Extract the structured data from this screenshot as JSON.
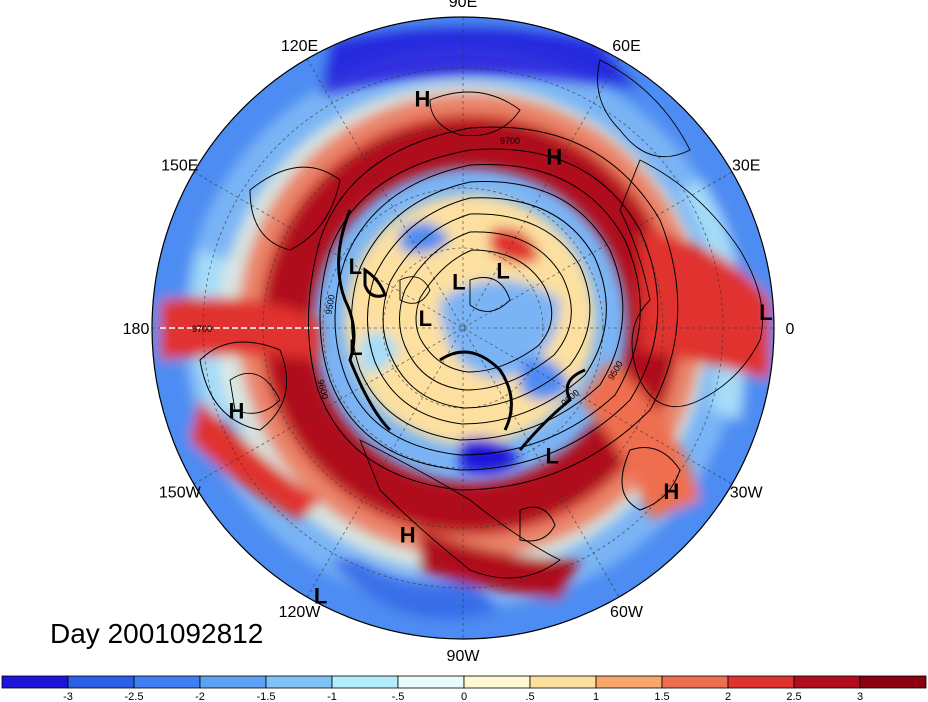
{
  "map": {
    "projection": "north-polar-stereographic",
    "longitude_labels": [
      {
        "text": "90E",
        "lon": 90
      },
      {
        "text": "60E",
        "lon": 60
      },
      {
        "text": "30E",
        "lon": 30
      },
      {
        "text": "0",
        "lon": 0
      },
      {
        "text": "30W",
        "lon": -30
      },
      {
        "text": "60W",
        "lon": -60
      },
      {
        "text": "90W",
        "lon": -90
      },
      {
        "text": "120W",
        "lon": -120
      },
      {
        "text": "150W",
        "lon": -150
      },
      {
        "text": "180",
        "lon": 180
      },
      {
        "text": "150E",
        "lon": 150
      },
      {
        "text": "120E",
        "lon": 120
      }
    ],
    "pressure_centers": [
      {
        "type": "H",
        "lon": 100,
        "lat": 30
      },
      {
        "type": "H",
        "lon": 62,
        "lat": 40
      },
      {
        "type": "H",
        "lon": -160,
        "lat": 28
      },
      {
        "type": "H",
        "lon": -105,
        "lat": 35
      },
      {
        "type": "H",
        "lon": -38,
        "lat": 22
      },
      {
        "type": "L",
        "lon": 150,
        "lat": 58
      },
      {
        "type": "L",
        "lon": 95,
        "lat": 78
      },
      {
        "type": "L",
        "lon": 55,
        "lat": 72
      },
      {
        "type": "L",
        "lon": 165,
        "lat": 80
      },
      {
        "type": "L",
        "lon": -170,
        "lat": 62
      },
      {
        "type": "L",
        "lon": -55,
        "lat": 50
      },
      {
        "type": "L",
        "lon": 3,
        "lat": 12
      },
      {
        "type": "L",
        "lon": -118,
        "lat": 12
      }
    ],
    "contour_labels": [
      "9700",
      "9700",
      "9500",
      "9500",
      "9600",
      "9600"
    ],
    "shading_colors": [
      "#1e14d9",
      "#2d5fe6",
      "#4d8cf2",
      "#7ab4f5",
      "#a6dcf7",
      "#d2f2fa",
      "#fdf8d8",
      "#fde0a0",
      "#f7a66e",
      "#ef6e4f",
      "#e0322f",
      "#b00c1e",
      "#8c0012"
    ]
  },
  "day_label": "Day 2001092812",
  "colorbar": {
    "ticks": [
      "-3",
      "-2.5",
      "-2",
      "-1.5",
      "-1",
      "-.5",
      "0",
      ".5",
      "1",
      "1.5",
      "2",
      "2.5",
      "3"
    ],
    "colors": [
      "#1e14d9",
      "#2d5fe6",
      "#3f7ef0",
      "#5da2f3",
      "#7fc2f6",
      "#b3ecfa",
      "#e9fbfd",
      "#fff7d1",
      "#fde0a0",
      "#f7a66e",
      "#ef6e4f",
      "#e0322f",
      "#b00c1e",
      "#8c0012"
    ]
  }
}
